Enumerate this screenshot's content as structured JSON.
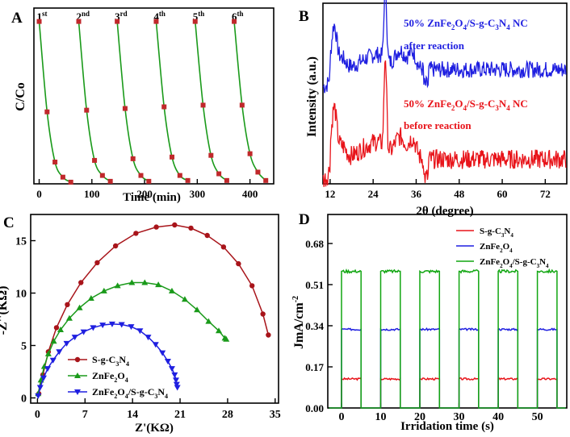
{
  "figure": {
    "panel_letters": [
      "A",
      "B",
      "C",
      "D"
    ]
  },
  "colors": {
    "green": "#1a9a1a",
    "red_marker": "#c0282b",
    "dark_red": "#a8141a",
    "blue": "#1f1fe0",
    "red": "#e8141a",
    "green_bright": "#11a611"
  },
  "chart_data": [
    {
      "id": "A",
      "type": "line",
      "xlabel": "Time (min)",
      "ylabel": "C/Co",
      "xlim": [
        -10,
        445
      ],
      "ylim": [
        0,
        1.05
      ],
      "xticks": [
        0,
        100,
        200,
        300,
        400
      ],
      "cycle_labels": [
        {
          "num": "1",
          "sup": "st",
          "x": 0
        },
        {
          "num": "2",
          "sup": "nd",
          "x": 75
        },
        {
          "num": "3",
          "sup": "rd",
          "x": 148
        },
        {
          "num": "4",
          "sup": "th",
          "x": 222
        },
        {
          "num": "5",
          "sup": "th",
          "x": 296
        },
        {
          "num": "6",
          "sup": "th",
          "x": 370
        }
      ],
      "cycles": [
        {
          "x": [
            0,
            15,
            30,
            45,
            60
          ],
          "y": [
            0.97,
            0.43,
            0.13,
            0.04,
            0.01
          ]
        },
        {
          "x": [
            75,
            90,
            105,
            120,
            135
          ],
          "y": [
            0.97,
            0.44,
            0.14,
            0.05,
            0.015
          ]
        },
        {
          "x": [
            148,
            163,
            178,
            193,
            208
          ],
          "y": [
            0.97,
            0.45,
            0.15,
            0.05,
            0.015
          ]
        },
        {
          "x": [
            222,
            237,
            252,
            267,
            282
          ],
          "y": [
            0.97,
            0.46,
            0.16,
            0.05,
            0.02
          ]
        },
        {
          "x": [
            296,
            311,
            326,
            341,
            356
          ],
          "y": [
            0.97,
            0.47,
            0.17,
            0.06,
            0.02
          ]
        },
        {
          "x": [
            370,
            385,
            400,
            415,
            430
          ],
          "y": [
            0.97,
            0.47,
            0.18,
            0.07,
            0.02
          ]
        }
      ]
    },
    {
      "id": "B",
      "type": "line",
      "xlabel": "2θ (degree)",
      "ylabel": "Intensity (a.u.)",
      "xlim": [
        10,
        78
      ],
      "xticks": [
        12,
        24,
        36,
        48,
        60,
        72
      ],
      "series": [
        {
          "name": "after reaction",
          "label_main": "50% ZnFe",
          "sub1": "2",
          "mid": "O",
          "sub2": "4",
          "tail": "/S-g-C",
          "sub3": "3",
          "tail2": "N",
          "sub4": "4",
          "tail3": " NC",
          "line2": "after reaction",
          "offset": 1.0
        },
        {
          "name": "before reaction",
          "label_main": "50% ZnFe",
          "sub1": "2",
          "mid": "O",
          "sub2": "4",
          "tail": "/S-g-C",
          "sub3": "3",
          "tail2": "N",
          "sub4": "4",
          "tail3": " NC",
          "line2": "before reaction",
          "offset": 0.0
        }
      ],
      "peaks_2theta": [
        13.1,
        27.4,
        31.5,
        35.0
      ]
    },
    {
      "id": "C",
      "type": "scatter",
      "xlabel": "Z'(KΩ)",
      "ylabel": "-Z''(KΩ)",
      "xlim": [
        -1,
        35.5
      ],
      "ylim": [
        -0.5,
        17.5
      ],
      "xticks": [
        0,
        7,
        14,
        21,
        28,
        35
      ],
      "yticks": [
        0,
        5,
        10,
        15
      ],
      "series": [
        {
          "name": "S-g-C3N4",
          "legend": [
            "S-g-C",
            "3",
            "N",
            "4"
          ],
          "marker": "circle",
          "x": [
            0.2,
            0.8,
            1.6,
            2.8,
            4.4,
            6.4,
            8.8,
            11.5,
            14.5,
            17.5,
            20.2,
            22.6,
            25.0,
            27.4,
            29.6,
            31.6,
            33.2,
            34.0
          ],
          "y": [
            0.4,
            2.2,
            4.4,
            6.7,
            8.9,
            11.0,
            12.9,
            14.5,
            15.7,
            16.3,
            16.5,
            16.2,
            15.5,
            14.4,
            12.8,
            10.7,
            8.0,
            6.0
          ]
        },
        {
          "name": "ZnFe2O4",
          "legend": [
            "ZnFe",
            "2",
            "O",
            "4"
          ],
          "marker": "triangle-up",
          "x": [
            0.1,
            0.5,
            1.0,
            1.6,
            2.4,
            3.4,
            4.7,
            6.2,
            7.9,
            9.8,
            11.8,
            13.9,
            15.8,
            17.8,
            19.8,
            21.7,
            23.5,
            25.2,
            26.7,
            27.6,
            27.8
          ],
          "y": [
            0.4,
            1.7,
            3.0,
            4.2,
            5.4,
            6.5,
            7.6,
            8.6,
            9.5,
            10.2,
            10.7,
            11.0,
            11.0,
            10.8,
            10.2,
            9.4,
            8.4,
            7.3,
            6.4,
            5.7,
            5.6
          ]
        },
        {
          "name": "ZnFe2O4/S-g-C3N4",
          "legend": [
            "ZnFe",
            "2",
            "O",
            "4",
            "/S-g-C",
            "3",
            "N",
            "4"
          ],
          "marker": "triangle-down",
          "x": [
            0.1,
            0.4,
            0.9,
            1.5,
            2.3,
            3.2,
            4.3,
            5.5,
            6.8,
            8.2,
            9.6,
            11.0,
            12.4,
            13.8,
            15.1,
            16.3,
            17.4,
            18.4,
            19.2,
            19.8,
            20.2,
            20.4,
            20.5,
            20.6
          ],
          "y": [
            0.2,
            1.0,
            1.9,
            2.8,
            3.6,
            4.4,
            5.2,
            5.8,
            6.3,
            6.7,
            6.95,
            7.05,
            7.0,
            6.8,
            6.4,
            5.8,
            5.1,
            4.3,
            3.5,
            2.8,
            2.2,
            1.7,
            1.3,
            1.0
          ]
        }
      ]
    },
    {
      "id": "D",
      "type": "line",
      "xlabel": "Irridation time (s)",
      "ylabel": "JmA/cm",
      "ylabel_sup": "-2",
      "xlim": [
        -3.5,
        57.5
      ],
      "ylim": [
        0,
        0.8
      ],
      "xticks": [
        0,
        10,
        20,
        30,
        40,
        50
      ],
      "yticks": [
        0.0,
        0.17,
        0.34,
        0.51,
        0.68
      ],
      "ytick_labels": [
        "0.00",
        "0.17",
        "0.34",
        "0.51",
        "0.68"
      ],
      "on_intervals": [
        [
          0,
          5
        ],
        [
          10,
          15
        ],
        [
          20,
          25
        ],
        [
          30,
          35
        ],
        [
          40,
          45
        ],
        [
          50,
          55
        ]
      ],
      "series": [
        {
          "name": "S-g-C3N4",
          "legend": [
            "S-g-C",
            "3",
            "N",
            "4"
          ],
          "on_value": 0.12
        },
        {
          "name": "ZnFe2O4",
          "legend": [
            "ZnFe",
            "2",
            "O",
            "4"
          ],
          "on_value": 0.325
        },
        {
          "name": "ZnFe2O4/S-g-C3N4",
          "legend": [
            "ZnFe",
            "2",
            "O",
            "4",
            "/S-g-C",
            "3",
            "N",
            "4"
          ],
          "on_value": 0.565
        }
      ]
    }
  ]
}
